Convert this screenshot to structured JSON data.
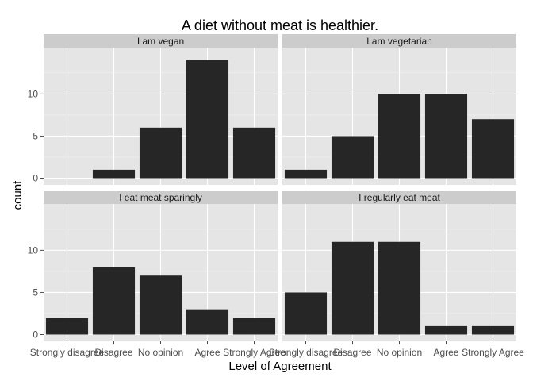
{
  "chart_data": {
    "type": "bar",
    "title": "A diet without meat is healthier.",
    "xlabel": "Level of Agreement",
    "ylabel": "count",
    "categories": [
      "Strongly disagree",
      "Disagree",
      "No opinion",
      "Agree",
      "Strongly Agree"
    ],
    "ylim": [
      -0.8,
      15.5
    ],
    "yticks": [
      0,
      5,
      10
    ],
    "grid": true,
    "colors": {
      "bar": "#262626",
      "panel": "#e5e5e5",
      "strip": "#cccccc"
    },
    "facets": [
      {
        "name": "I am vegan",
        "values": [
          0,
          1,
          6,
          14,
          6
        ]
      },
      {
        "name": "I am vegetarian",
        "values": [
          1,
          5,
          10,
          10,
          7
        ]
      },
      {
        "name": "I eat meat sparingly",
        "values": [
          2,
          8,
          7,
          3,
          2
        ]
      },
      {
        "name": "I regularly eat meat",
        "values": [
          5,
          11,
          11,
          1,
          1
        ]
      }
    ]
  }
}
